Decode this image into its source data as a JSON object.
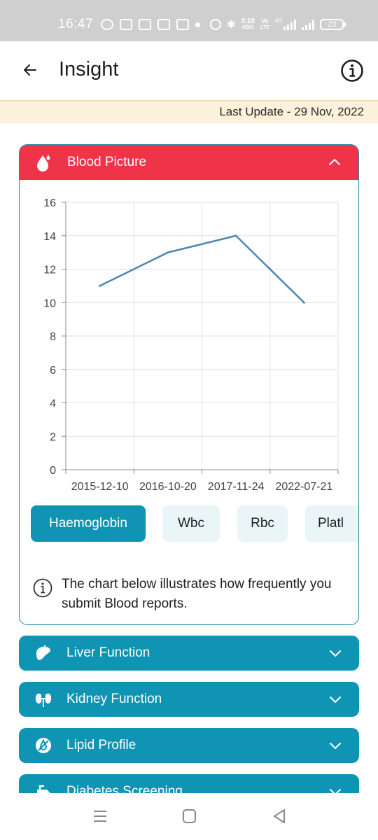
{
  "status_bar": {
    "time": "16:47",
    "net_speed_value": "0.10",
    "net_speed_unit": "KB/S",
    "volte": "Vo",
    "lte": "LTE",
    "network": "4G",
    "battery": "23"
  },
  "header": {
    "title": "Insight"
  },
  "update": {
    "text": "Last Update - 29 Nov, 2022"
  },
  "blood_card": {
    "title": "Blood Picture",
    "tabs": [
      "Haemoglobin",
      "Wbc",
      "Rbc",
      "Platl"
    ],
    "active_tab": "Haemoglobin",
    "note": "The chart below illustrates how frequently you submit Blood reports."
  },
  "chart_data": {
    "type": "line",
    "categories": [
      "2015-12-10",
      "2016-10-20",
      "2017-11-24",
      "2022-07-21"
    ],
    "series": [
      {
        "values": [
          11,
          13,
          14,
          10
        ]
      }
    ],
    "ylim": [
      0,
      16
    ],
    "yticks": [
      0,
      2,
      4,
      6,
      8,
      10,
      12,
      14,
      16
    ],
    "grid": true,
    "line_color": "#4c86b4"
  },
  "sections": [
    {
      "title": "Liver Function",
      "icon": "liver-icon"
    },
    {
      "title": "Kidney Function",
      "icon": "kidney-icon"
    },
    {
      "title": "Lipid Profile",
      "icon": "lipid-icon"
    },
    {
      "title": "Diabetes Screening",
      "icon": "diabetes-icon"
    }
  ],
  "colors": {
    "accent": "#0f95b3",
    "blood_red": "#ef3349",
    "update_bg": "#fcf1da"
  }
}
